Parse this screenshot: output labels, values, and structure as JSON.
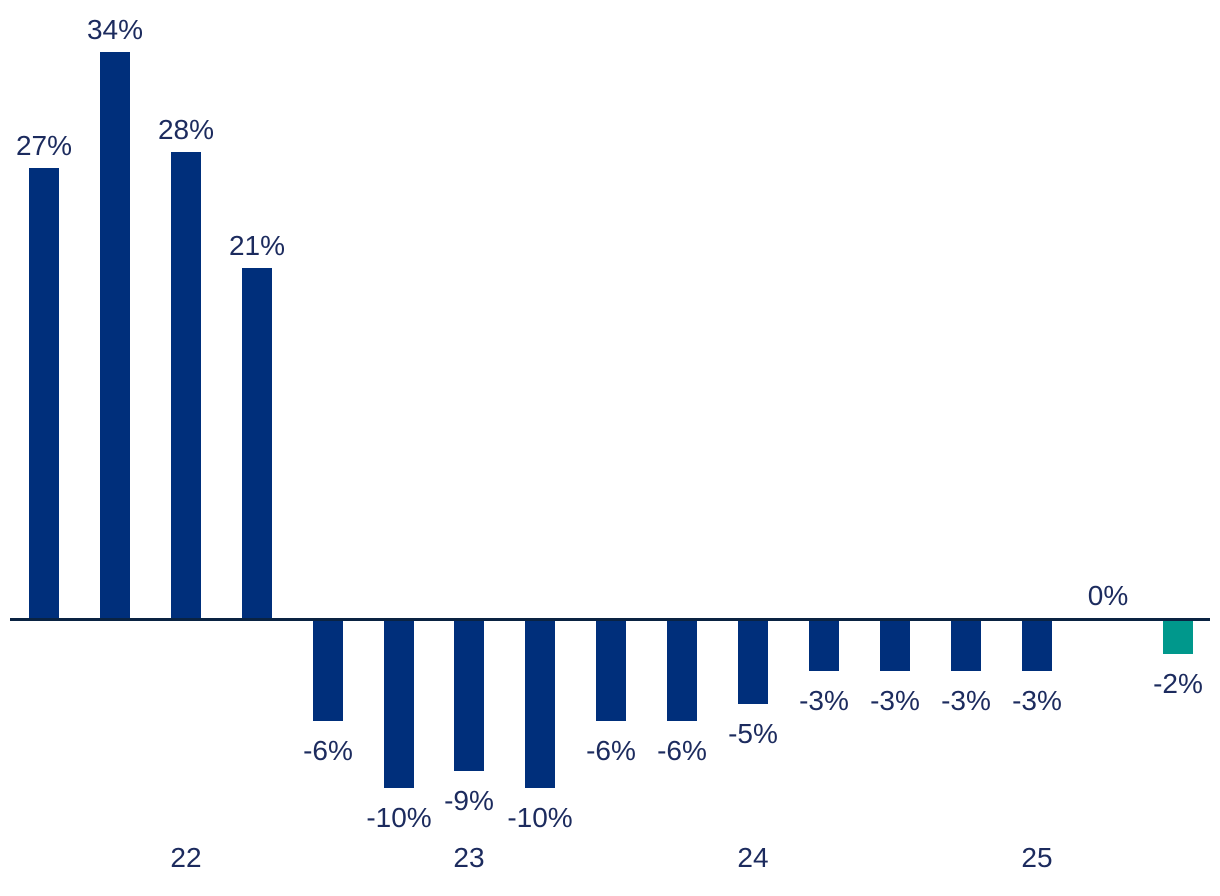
{
  "chart_data": {
    "type": "bar",
    "title": "",
    "xlabel": "",
    "ylabel": "",
    "unit": "%",
    "grid": false,
    "legend_position": "none",
    "baseline": 0,
    "ylim": [
      -12,
      36
    ],
    "values": [
      27,
      34,
      28,
      21,
      -6,
      -10,
      -9,
      -10,
      -6,
      -6,
      -5,
      -3,
      -3,
      -3,
      -3,
      0,
      -2
    ],
    "labels": [
      "27%",
      "34%",
      "28%",
      "21%",
      "-6%",
      "-10%",
      "-9%",
      "-10%",
      "-6%",
      "-6%",
      "-5%",
      "-3%",
      "-3%",
      "-3%",
      "-3%",
      "0%",
      "-2%"
    ],
    "highlight_last_bar": true,
    "x_year_ticks": [
      {
        "label": "22",
        "bar_index": 2
      },
      {
        "label": "23",
        "bar_index": 6
      },
      {
        "label": "24",
        "bar_index": 10
      },
      {
        "label": "25",
        "bar_index": 14
      }
    ],
    "colors": {
      "bar": "#002f7b",
      "highlight": "#00988c",
      "axis_line": "#0a2342",
      "label_text": "#1c2b5e"
    }
  }
}
